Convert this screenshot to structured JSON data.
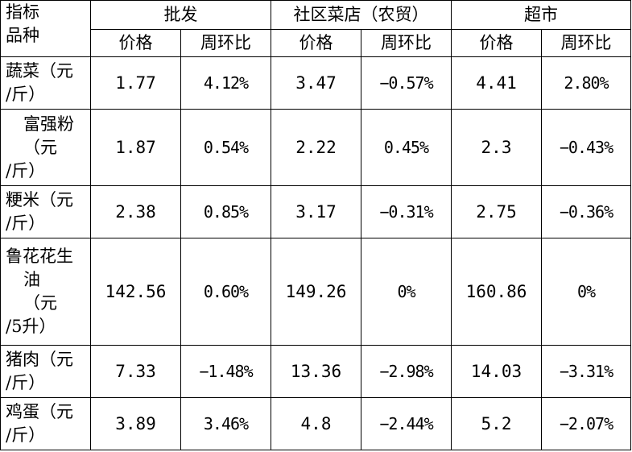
{
  "header": {
    "corner_top": "指标",
    "corner_bottom": "品种",
    "groups": [
      "批发",
      "社区菜店（农贸）",
      "超市"
    ],
    "sub": [
      "价格",
      "周环比",
      "价格",
      "周环比",
      "价格",
      "周环比"
    ]
  },
  "rows": [
    {
      "name_lines": [
        "蔬菜（元",
        "/斤）"
      ],
      "values": [
        "1.77",
        "4.12%",
        "3.47",
        "−0.57%",
        "4.41",
        "2.80%"
      ]
    },
    {
      "name_lines": [
        "富强粉",
        "（元",
        "/斤）"
      ],
      "values": [
        "1.87",
        "0.54%",
        "2.22",
        "0.45%",
        "2.3",
        "−0.43%"
      ]
    },
    {
      "name_lines": [
        "粳米（元",
        "/斤）"
      ],
      "values": [
        "2.38",
        "0.85%",
        "3.17",
        "−0.31%",
        "2.75",
        "−0.36%"
      ]
    },
    {
      "name_lines": [
        "鲁花花生",
        "油",
        "（元",
        "/5升）"
      ],
      "values": [
        "142.56",
        "0.60%",
        "149.26",
        "0%",
        "160.86",
        "0%"
      ]
    },
    {
      "name_lines": [
        "猪肉（元",
        "/斤）"
      ],
      "values": [
        "7.33",
        "−1.48%",
        "13.36",
        "−2.98%",
        "14.03",
        "−3.31%"
      ]
    },
    {
      "name_lines": [
        "鸡蛋（元",
        "/斤）"
      ],
      "values": [
        "3.89",
        "3.46%",
        "4.8",
        "−2.44%",
        "5.2",
        "−2.07%"
      ]
    }
  ]
}
